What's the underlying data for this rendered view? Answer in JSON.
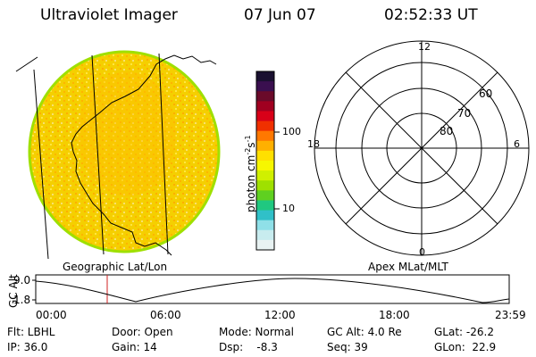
{
  "header": {
    "instrument": "Ultraviolet Imager",
    "date": "07 Jun 07",
    "time": "02:52:33 UT"
  },
  "colorbar": {
    "axis_label": "photon cm",
    "exp_1": "-2",
    "mid": "s",
    "exp_2": "-1",
    "ticks": [
      "100",
      "10"
    ],
    "colors": [
      "#1a1030",
      "#3a0f4f",
      "#6a0a2a",
      "#a00020",
      "#d80018",
      "#f03000",
      "#ff7800",
      "#ffb000",
      "#ffe000",
      "#f7f700",
      "#d0f000",
      "#9fe000",
      "#5fd020",
      "#20c880",
      "#30c0c8",
      "#8fe0e8",
      "#c8ecef",
      "#e8f2f2"
    ]
  },
  "image_panel": {
    "label": "Geographic Lat/Lon",
    "fill_color": "#f5cf00",
    "rim_color": "#9fe000"
  },
  "polar_plot": {
    "label": "Apex MLat/MLT",
    "mlt_labels": {
      "top": "12",
      "bottom": "0",
      "left": "18",
      "right": "6"
    },
    "lat_labels": [
      "60",
      "70",
      "80"
    ]
  },
  "altitude_plot": {
    "ylabel": "GC Alt",
    "yticks": [
      "9.0",
      "1.8"
    ],
    "xticks": [
      "00:00",
      "06:00",
      "12:00",
      "18:00",
      "23:59"
    ],
    "marker_color": "#d02020"
  },
  "footer": {
    "filter": "Flt: LBHL",
    "door": "Door: Open",
    "mode": "Mode: Normal",
    "gc_alt": "GC Alt: 4.0 Re",
    "glat": "GLat: -26.2",
    "ip": "IP: 36.0",
    "gain": "Gain: 14",
    "dsp": "Dsp:    -8.3",
    "seq": "Seq: 39",
    "glon": "GLon:  22.9"
  }
}
